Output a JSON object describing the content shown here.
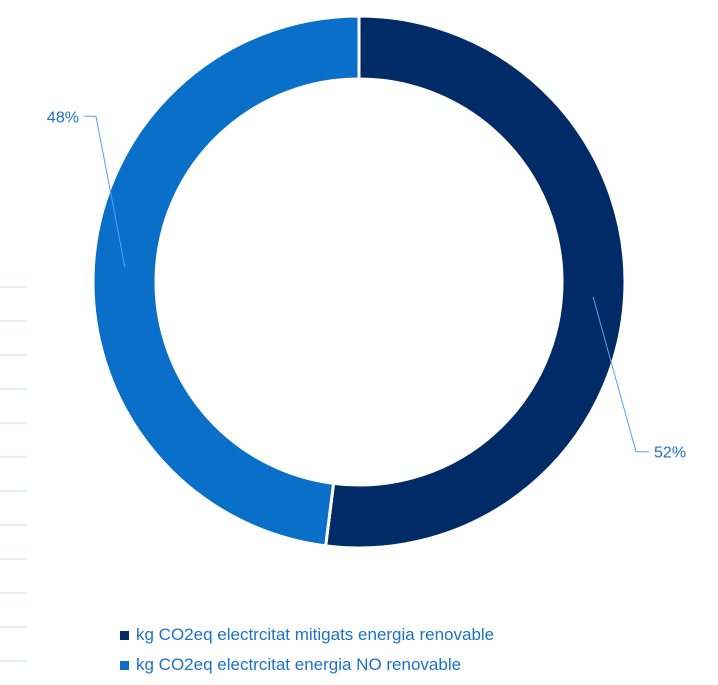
{
  "chart_data": {
    "type": "pie",
    "variant": "donut",
    "series": [
      {
        "name": "kg CO2eq electrcitat mitigats energia renovable",
        "value": 52,
        "label": "52%",
        "color": "#002b66"
      },
      {
        "name": "kg CO2eq electrcitat energia NO renovable",
        "value": 48,
        "label": "48%",
        "color": "#0a6fc9"
      }
    ],
    "legend_position": "bottom",
    "label_color": "#1a73c8",
    "leader_line_color": "#5b9ff0"
  }
}
